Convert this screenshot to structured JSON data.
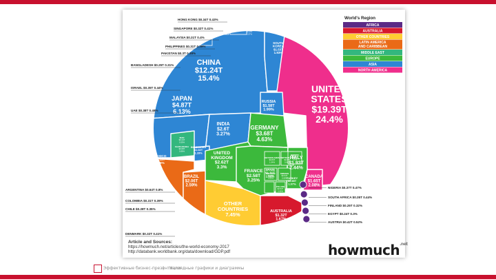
{
  "footer": {
    "left_text": "Эффективные бизнес-презентации",
    "separator": "|",
    "right_text": "Наглядные графики и диаграммы"
  },
  "source": {
    "heading": "Article and Sources:",
    "line1": "https://howmuch.net/articles/the-world-economy-2017",
    "line2": "http://databank.worldbank.org/data/download/GDP.pdf"
  },
  "brand": {
    "name": "howmuch",
    "tld": ".net"
  },
  "colors": {
    "africa": "#5b2a86",
    "australia": "#d7192d",
    "other": "#ffcc33",
    "latam": "#ea6a17",
    "mideast": "#33b77e",
    "europe": "#3cb93c",
    "asia": "#2e86d4",
    "namerica": "#ef2e8c"
  },
  "chart_data": {
    "type": "treemap",
    "title": "",
    "legend": {
      "title": "World's Region",
      "placement": "top-right",
      "items": [
        {
          "label": "AFRICA",
          "color": "#5b2a86"
        },
        {
          "label": "AUSTRALIA",
          "color": "#d7192d"
        },
        {
          "label": "OTHER COUNTRIES",
          "color": "#ffcc33"
        },
        {
          "label": "LATIN AMERICA AND CARIBBEAN",
          "color": "#ea6a17"
        },
        {
          "label": "MIDDLE EAST",
          "color": "#33b77e"
        },
        {
          "label": "EUROPE",
          "color": "#3cb93c"
        },
        {
          "label": "ASIA",
          "color": "#2e86d4"
        },
        {
          "label": "NORTH AMERICA",
          "color": "#ef2e8c"
        }
      ]
    },
    "cells": [
      {
        "name": "UNITED STATES",
        "value": "$19.39T",
        "share": "24.4%"
      },
      {
        "name": "CHINA",
        "value": "$12.24T",
        "share": "15.4%"
      },
      {
        "name": "JAPAN",
        "value": "$4.87T",
        "share": "6.13%"
      },
      {
        "name": "GERMANY",
        "value": "$3.68T",
        "share": "4.63%"
      },
      {
        "name": "INDIA",
        "value": "$2.6T",
        "share": "3.27%"
      },
      {
        "name": "UNITED KINGDOM",
        "value": "$2.62T",
        "share": "3.3%"
      },
      {
        "name": "FRANCE",
        "value": "$2.58T",
        "share": "3.25%"
      },
      {
        "name": "ITALY",
        "value": "$1.93T",
        "share": "2.44%"
      },
      {
        "name": "BRAZIL",
        "value": "$2.06T",
        "share": "2.59%"
      },
      {
        "name": "CANADA",
        "value": "$1.65T",
        "share": "2.08%"
      },
      {
        "name": "RUSSIA",
        "value": "$1.58T",
        "share": "1.99%"
      },
      {
        "name": "SOUTH KOREA",
        "value": "$1.53T",
        "share": "1.93%"
      },
      {
        "name": "AUSTRALIA",
        "value": "$1.32T",
        "share": "1.67%"
      },
      {
        "name": "SPAIN",
        "value": "$1.31T",
        "share": "1.65%"
      },
      {
        "name": "MEXICO",
        "value": "$1.15T",
        "share": "1.45%"
      },
      {
        "name": "INDONESIA",
        "value": "$1.02T",
        "share": "1.28%"
      },
      {
        "name": "TURKEY",
        "value": "$0.85T",
        "share": "1.07%"
      },
      {
        "name": "OTHER COUNTRIES",
        "value": "",
        "share": "7.45%"
      }
    ],
    "callouts_left": [
      {
        "label": "HONG KONG",
        "value": "$0.34T",
        "share": "0.43%"
      },
      {
        "label": "SINGAPORE",
        "value": "$0.32T",
        "share": "0.41%"
      },
      {
        "label": "MALAYSIA",
        "value": "$0.31T",
        "share": "0.4%"
      },
      {
        "label": "PHILIPPINES",
        "value": "$0.31T",
        "share": "0.39%"
      },
      {
        "label": "PAKISTAN",
        "value": "$0.3T",
        "share": "0.38%"
      },
      {
        "label": "BANGLADESH",
        "value": "$0.25T",
        "share": "0.31%"
      },
      {
        "label": "ISRAEL",
        "value": "$0.35T",
        "share": "0.44%"
      },
      {
        "label": "UAE",
        "value": "$0.38T",
        "share": "0.48%"
      },
      {
        "label": "ARGENTINA",
        "value": "$0.64T",
        "share": "0.8%"
      },
      {
        "label": "COLOMBIA",
        "value": "$0.31T",
        "share": "0.39%"
      },
      {
        "label": "CHILE",
        "value": "$0.28T",
        "share": "0.35%"
      },
      {
        "label": "DENMARK",
        "value": "$0.32T",
        "share": "0.41%"
      }
    ],
    "callouts_right": [
      {
        "label": "NIGERIA",
        "value": "$0.37T",
        "share": "0.47%"
      },
      {
        "label": "SOUTH AFRICA",
        "value": "$0.35T",
        "share": "0.44%"
      },
      {
        "label": "FINLAND",
        "value": "$0.25T",
        "share": "0.32%"
      },
      {
        "label": "EGYPT",
        "value": "$0.24T",
        "share": "0.3%"
      },
      {
        "label": "AUSTRIA",
        "value": "$0.42T",
        "share": "0.52%"
      }
    ],
    "small_cells": [
      {
        "name": "THAILAND",
        "value": "$0.45T",
        "share": "0.57%"
      },
      {
        "name": "IRAN",
        "value": "$0.44T",
        "share": "0.55%"
      },
      {
        "name": "SAUDI ARABIA",
        "value": "$0.68T",
        "share": "0.86%"
      },
      {
        "name": "NETHERLANDS",
        "value": "$0.83T",
        "share": "1.04%"
      },
      {
        "name": "SWITZERLAND",
        "value": "$0.68T",
        "share": "0.86%"
      },
      {
        "name": "BELGIUM",
        "value": "$0.49T",
        "share": "0.62%"
      },
      {
        "name": "SWEDEN",
        "value": "$0.54T",
        "share": "0.68%"
      },
      {
        "name": "POLAND",
        "value": "$0.52T",
        "share": "0.66%"
      },
      {
        "name": "NORWAY",
        "value": "$0.4T",
        "share": "0.5%"
      }
    ]
  }
}
